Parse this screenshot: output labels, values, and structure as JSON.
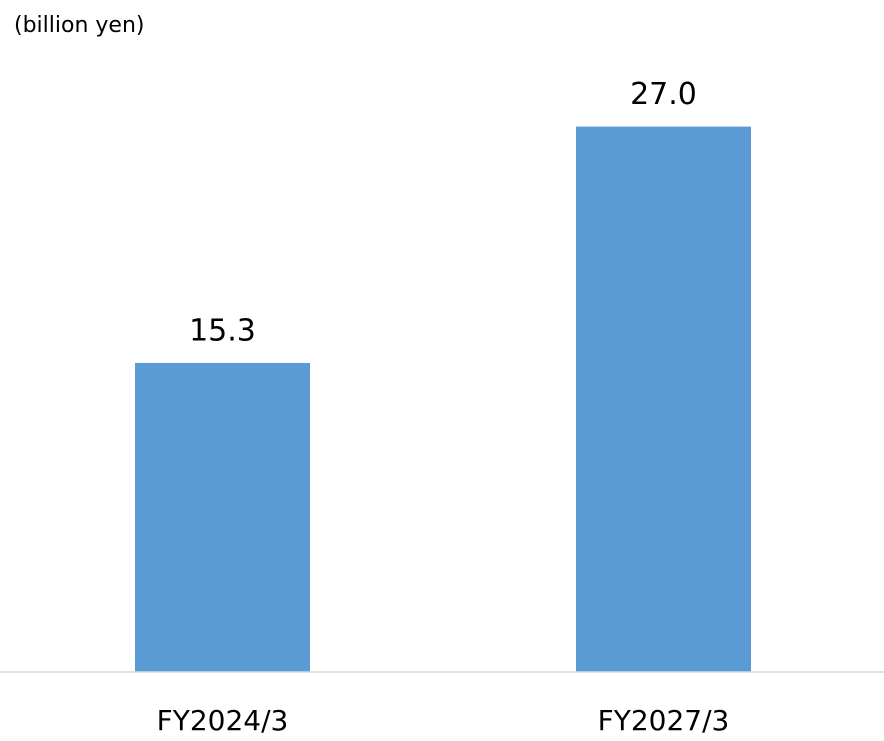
{
  "chart_data": {
    "type": "bar",
    "y_label": "(billion yen)",
    "categories": [
      "FY2024/3",
      "FY2027/3"
    ],
    "values": [
      15.3,
      27.0
    ],
    "value_labels": [
      "15.3",
      "27.0"
    ],
    "color": "#5b9bd5",
    "ylim": [
      0,
      30
    ]
  }
}
